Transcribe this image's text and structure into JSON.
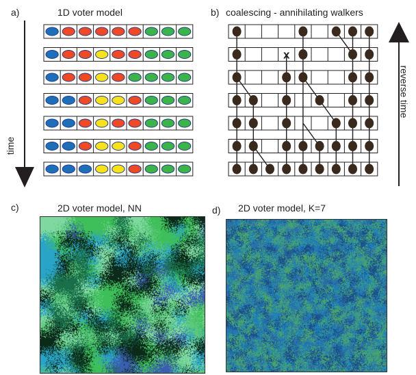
{
  "panel_a": {
    "letter": "a)",
    "title": "1D voter model",
    "axis_label": "time",
    "columns": 9,
    "colors": {
      "B": "#1f6fb8",
      "R": "#ef4a25",
      "Y": "#f7e21b",
      "G": "#3cb44a",
      "outline": "#1f3a8a"
    },
    "rows": [
      [
        "B",
        "R",
        "R",
        "R",
        "R",
        "R",
        "G",
        "G",
        "G"
      ],
      [
        "B",
        "R",
        "R",
        "Y",
        "R",
        "R",
        "G",
        "G",
        "G"
      ],
      [
        "B",
        "R",
        "R",
        "Y",
        "R",
        "G",
        "G",
        "G",
        "G"
      ],
      [
        "B",
        "B",
        "R",
        "Y",
        "Y",
        "R",
        "G",
        "G",
        "G"
      ],
      [
        "B",
        "B",
        "R",
        "Y",
        "R",
        "R",
        "G",
        "G",
        "G"
      ],
      [
        "B",
        "B",
        "R",
        "Y",
        "Y",
        "R",
        "G",
        "G",
        "G"
      ],
      [
        "B",
        "B",
        "B",
        "Y",
        "Y",
        "R",
        "G",
        "G",
        "G"
      ]
    ]
  },
  "panel_b": {
    "letter": "b)",
    "title": "coalescing - annihilating walkers",
    "axis_label": "reverse time",
    "columns": 9,
    "rows_count": 7,
    "annihilation_mark": "x",
    "dot_color": "#3a2a1e",
    "walkers": [
      {
        "from": [
          0,
          0
        ],
        "to": [
          0,
          1
        ]
      },
      {
        "from": [
          0,
          1
        ],
        "to": [
          0,
          2
        ]
      },
      {
        "from": [
          0,
          2
        ],
        "to": [
          0,
          3
        ]
      },
      {
        "from": [
          0,
          3
        ],
        "to": [
          0,
          4
        ]
      },
      {
        "from": [
          0,
          4
        ],
        "to": [
          0,
          5
        ]
      },
      {
        "from": [
          0,
          5
        ],
        "to": [
          0,
          6
        ]
      },
      {
        "from": [
          0,
          2
        ],
        "to": [
          1,
          3
        ]
      },
      {
        "from": [
          1,
          3
        ],
        "to": [
          1,
          4
        ]
      },
      {
        "from": [
          1,
          4
        ],
        "to": [
          1,
          5
        ]
      },
      {
        "from": [
          1,
          5
        ],
        "to": [
          1,
          6
        ]
      },
      {
        "from": [
          1,
          5
        ],
        "to": [
          2,
          6
        ]
      },
      {
        "from": [
          4,
          0
        ],
        "to": [
          4,
          1
        ]
      },
      {
        "from": [
          4,
          1
        ],
        "to": [
          4,
          2
        ]
      },
      {
        "from": [
          4,
          2
        ],
        "to": [
          4,
          3
        ]
      },
      {
        "from": [
          4,
          3
        ],
        "to": [
          4,
          4
        ]
      },
      {
        "from": [
          4,
          4
        ],
        "to": [
          5,
          5
        ]
      },
      {
        "from": [
          5,
          5
        ],
        "to": [
          5,
          6
        ]
      },
      {
        "from": [
          4,
          4
        ],
        "to": [
          4,
          5
        ]
      },
      {
        "from": [
          4,
          5
        ],
        "to": [
          4,
          6
        ]
      },
      {
        "from": [
          3,
          1
        ],
        "to": [
          3,
          2
        ]
      },
      {
        "from": [
          3,
          2
        ],
        "to": [
          3,
          3
        ]
      },
      {
        "from": [
          3,
          3
        ],
        "to": [
          3,
          4
        ]
      },
      {
        "from": [
          3,
          4
        ],
        "to": [
          3,
          5
        ]
      },
      {
        "from": [
          3,
          5
        ],
        "to": [
          3,
          6
        ]
      },
      {
        "from": [
          4,
          2
        ],
        "to": [
          5,
          3
        ]
      },
      {
        "from": [
          5,
          3
        ],
        "to": [
          6,
          4
        ]
      },
      {
        "from": [
          6,
          4
        ],
        "to": [
          6,
          5
        ]
      },
      {
        "from": [
          6,
          5
        ],
        "to": [
          6,
          6
        ]
      },
      {
        "from": [
          6,
          0
        ],
        "to": [
          7,
          1
        ]
      },
      {
        "from": [
          7,
          0
        ],
        "to": [
          7,
          1
        ]
      },
      {
        "from": [
          7,
          1
        ],
        "to": [
          7,
          2
        ]
      },
      {
        "from": [
          7,
          2
        ],
        "to": [
          7,
          3
        ]
      },
      {
        "from": [
          7,
          3
        ],
        "to": [
          7,
          4
        ]
      },
      {
        "from": [
          7,
          4
        ],
        "to": [
          7,
          5
        ]
      },
      {
        "from": [
          7,
          5
        ],
        "to": [
          7,
          6
        ]
      },
      {
        "from": [
          8,
          0
        ],
        "to": [
          8,
          1
        ]
      },
      {
        "from": [
          8,
          1
        ],
        "to": [
          8,
          2
        ]
      },
      {
        "from": [
          8,
          2
        ],
        "to": [
          8,
          3
        ]
      },
      {
        "from": [
          8,
          3
        ],
        "to": [
          8,
          4
        ]
      },
      {
        "from": [
          8,
          4
        ],
        "to": [
          8,
          5
        ]
      },
      {
        "from": [
          8,
          5
        ],
        "to": [
          8,
          6
        ]
      }
    ],
    "dots": [
      [
        0,
        0
      ],
      [
        4,
        0
      ],
      [
        6,
        0
      ],
      [
        7,
        0
      ],
      [
        8,
        0
      ],
      [
        0,
        1
      ],
      [
        4,
        1
      ],
      [
        7,
        1
      ],
      [
        8,
        1
      ],
      [
        0,
        2
      ],
      [
        3,
        2
      ],
      [
        4,
        2
      ],
      [
        7,
        2
      ],
      [
        8,
        2
      ],
      [
        0,
        3
      ],
      [
        1,
        3
      ],
      [
        3,
        3
      ],
      [
        5,
        3
      ],
      [
        7,
        3
      ],
      [
        8,
        3
      ],
      [
        0,
        4
      ],
      [
        1,
        4
      ],
      [
        3,
        4
      ],
      [
        6,
        4
      ],
      [
        7,
        4
      ],
      [
        8,
        4
      ],
      [
        0,
        5
      ],
      [
        1,
        5
      ],
      [
        3,
        5
      ],
      [
        4,
        5
      ],
      [
        5,
        5
      ],
      [
        6,
        5
      ],
      [
        7,
        5
      ],
      [
        8,
        5
      ],
      [
        0,
        6
      ],
      [
        1,
        6
      ],
      [
        2,
        6
      ],
      [
        3,
        6
      ],
      [
        4,
        6
      ],
      [
        5,
        6
      ],
      [
        6,
        6
      ],
      [
        7,
        6
      ],
      [
        8,
        6
      ]
    ],
    "annihilation_cell": [
      3,
      1
    ]
  },
  "panel_c": {
    "letter": "c)",
    "title": "2D voter model, NN",
    "palette": [
      "#3fbf5a",
      "#2aa3c8",
      "#1a6f4a",
      "#5cc87a",
      "#3b5fb0",
      "#0b2a1a",
      "#7fd8a0"
    ]
  },
  "panel_d": {
    "letter": "d)",
    "title": "2D voter model, K=7",
    "palette": [
      "#1f7fb8",
      "#2a6fa8",
      "#3a9a8a",
      "#1a4f88",
      "#4aa56a"
    ]
  }
}
